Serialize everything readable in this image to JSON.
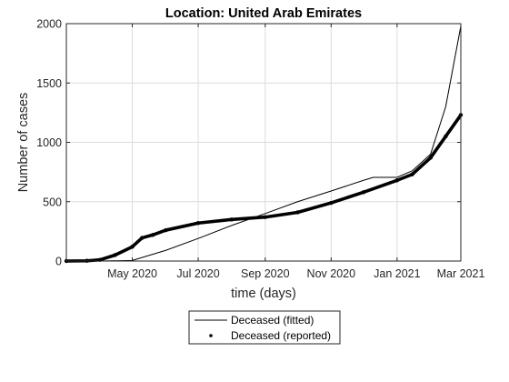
{
  "chart_data": {
    "type": "line",
    "title": "Location: United Arab Emirates",
    "xlabel": "time (days)",
    "ylabel": "Number of cases",
    "x_range": [
      "2020-03-01",
      "2021-03-01"
    ],
    "ylim": [
      0,
      2000
    ],
    "xticks": [
      {
        "date": "2020-05-01",
        "label": "May 2020"
      },
      {
        "date": "2020-07-01",
        "label": "Jul 2020"
      },
      {
        "date": "2020-09-01",
        "label": "Sep 2020"
      },
      {
        "date": "2020-11-01",
        "label": "Nov 2020"
      },
      {
        "date": "2021-01-01",
        "label": "Jan 2021"
      },
      {
        "date": "2021-03-01",
        "label": "Mar 2021"
      }
    ],
    "yticks": [
      0,
      500,
      1000,
      1500,
      2000
    ],
    "grid": true,
    "legend_position": "bottom-outside",
    "series": [
      {
        "name": "Deceased (fitted)",
        "style": "line",
        "color": "#000000",
        "points": [
          [
            "2020-03-01",
            0
          ],
          [
            "2020-04-01",
            0
          ],
          [
            "2020-05-01",
            5
          ],
          [
            "2020-06-01",
            90
          ],
          [
            "2020-07-01",
            190
          ],
          [
            "2020-08-01",
            300
          ],
          [
            "2020-09-01",
            400
          ],
          [
            "2020-10-01",
            500
          ],
          [
            "2020-11-01",
            590
          ],
          [
            "2020-12-01",
            680
          ],
          [
            "2020-12-10",
            705
          ],
          [
            "2021-01-01",
            705
          ],
          [
            "2021-01-15",
            760
          ],
          [
            "2021-02-01",
            900
          ],
          [
            "2021-02-15",
            1300
          ],
          [
            "2021-03-01",
            1980
          ]
        ]
      },
      {
        "name": "Deceased  (reported)",
        "style": "markers",
        "color": "#000000",
        "points": [
          [
            "2020-03-01",
            0
          ],
          [
            "2020-03-20",
            2
          ],
          [
            "2020-04-01",
            10
          ],
          [
            "2020-04-15",
            50
          ],
          [
            "2020-05-01",
            120
          ],
          [
            "2020-05-10",
            195
          ],
          [
            "2020-05-20",
            220
          ],
          [
            "2020-06-01",
            260
          ],
          [
            "2020-07-01",
            320
          ],
          [
            "2020-08-01",
            350
          ],
          [
            "2020-09-01",
            370
          ],
          [
            "2020-10-01",
            410
          ],
          [
            "2020-11-01",
            490
          ],
          [
            "2020-12-01",
            580
          ],
          [
            "2021-01-01",
            680
          ],
          [
            "2021-01-15",
            730
          ],
          [
            "2021-02-01",
            870
          ],
          [
            "2021-02-15",
            1050
          ],
          [
            "2021-03-01",
            1230
          ]
        ]
      }
    ]
  }
}
